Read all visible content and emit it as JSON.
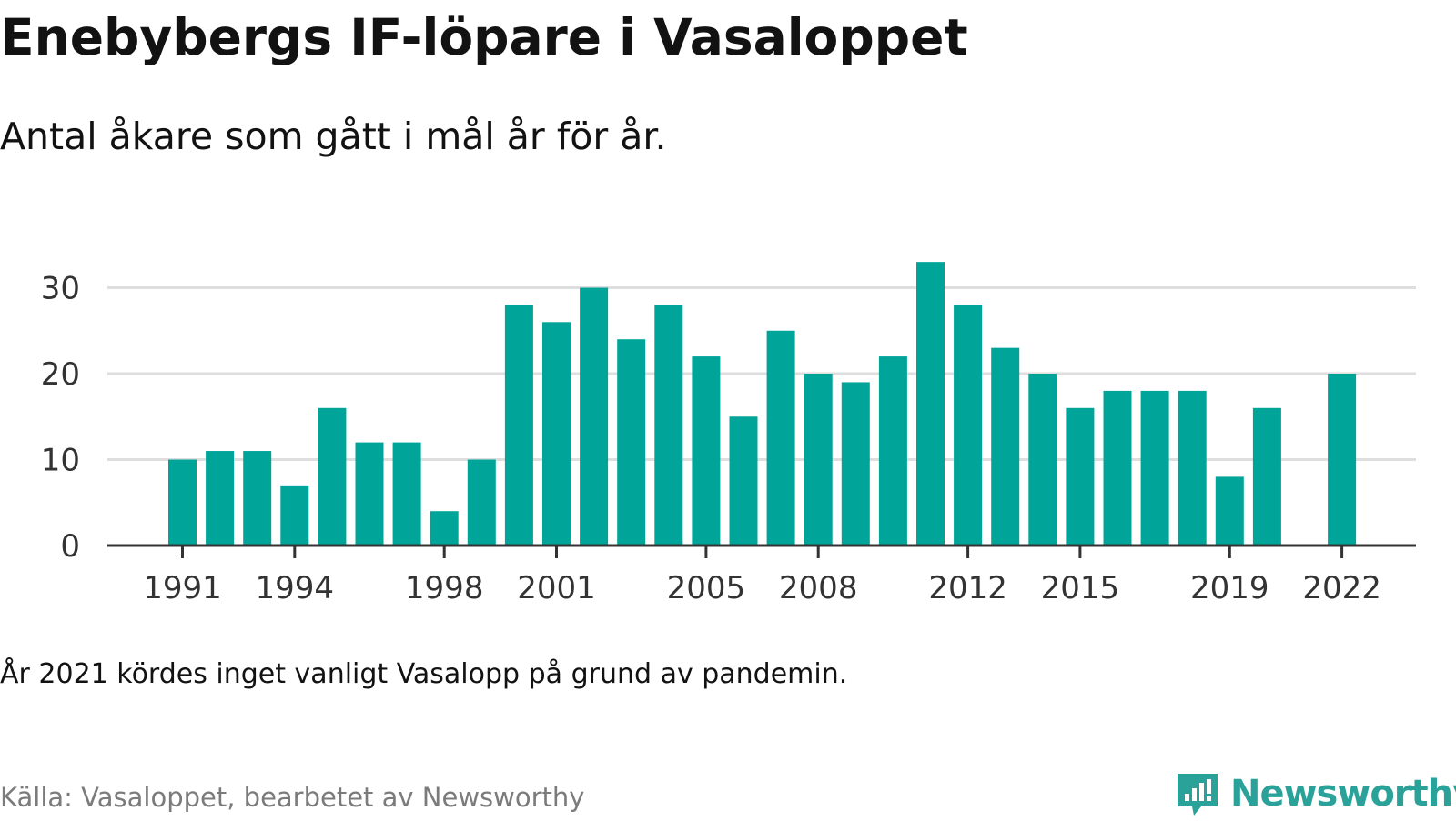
{
  "title": "Enebybergs IF-löpare i Vasaloppet",
  "subtitle": "Antal åkare som gått i mål år för år.",
  "note": "År 2021 kördes inget vanligt Vasalopp på grund av pandemin.",
  "source": "Källa: Vasaloppet, bearbetet av Newsworthy",
  "brand": {
    "name": "Newsworthy",
    "icon": "newsworthy-logo-icon",
    "color": "#2aa29a"
  },
  "colors": {
    "bar": "#00a499",
    "grid": "#dedede",
    "axis": "#333333",
    "tick_label": "#333333"
  },
  "chart_data": {
    "type": "bar",
    "title": "",
    "xlabel": "",
    "ylabel": "",
    "x": [
      1991,
      1992,
      1993,
      1994,
      1995,
      1996,
      1997,
      1998,
      1999,
      2000,
      2001,
      2002,
      2003,
      2004,
      2005,
      2006,
      2007,
      2008,
      2009,
      2010,
      2011,
      2012,
      2013,
      2014,
      2015,
      2016,
      2017,
      2018,
      2019,
      2020,
      2021,
      2022
    ],
    "values": [
      10,
      11,
      11,
      7,
      16,
      12,
      12,
      4,
      10,
      28,
      26,
      30,
      24,
      28,
      22,
      15,
      25,
      20,
      19,
      22,
      33,
      28,
      23,
      20,
      16,
      18,
      18,
      18,
      8,
      16,
      null,
      20
    ],
    "ylim": [
      0,
      33
    ],
    "y_ticks": [
      0,
      10,
      20,
      30
    ],
    "x_tick_labels": [
      "1991",
      "1994",
      "1998",
      "2001",
      "2005",
      "2008",
      "2012",
      "2015",
      "2019",
      "2022"
    ],
    "grid": true,
    "legend": "none"
  }
}
